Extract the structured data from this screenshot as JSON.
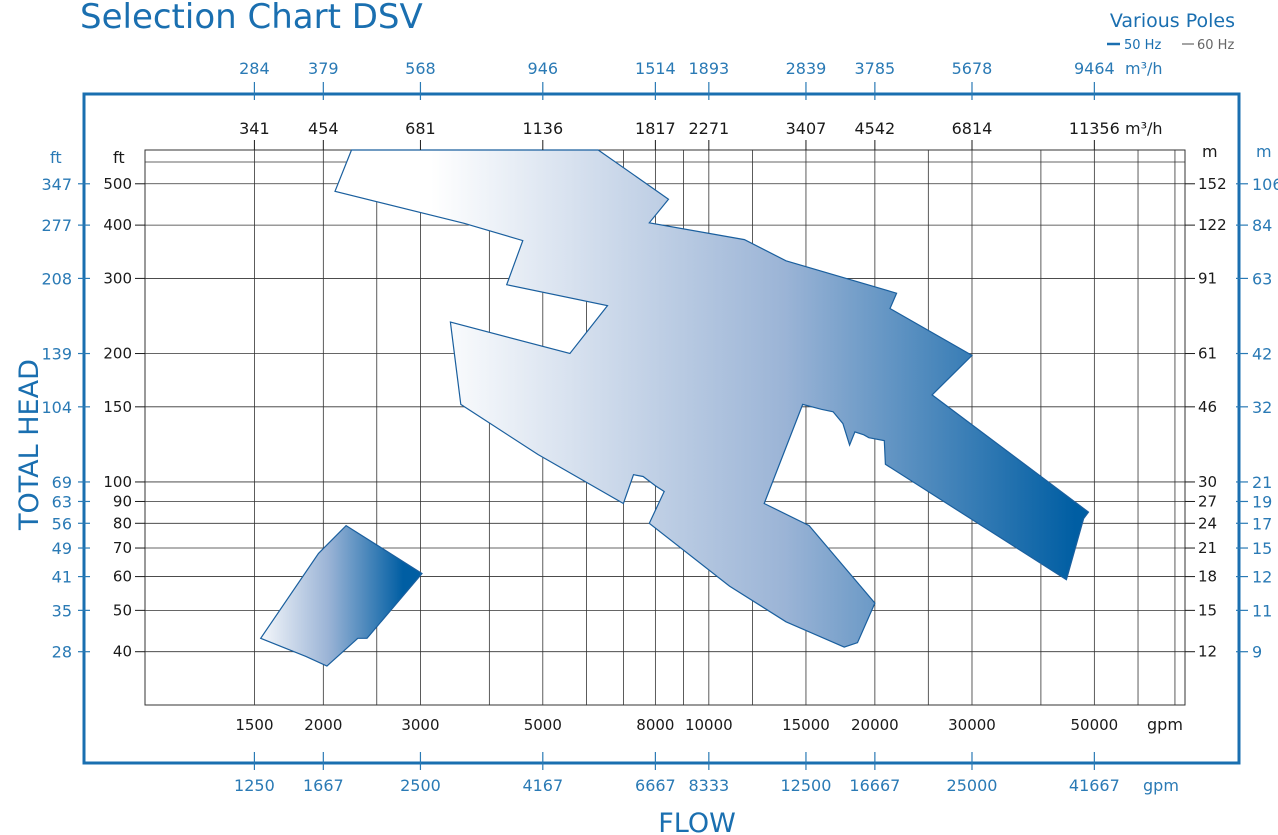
{
  "title": "Selection Chart DSV",
  "legend": {
    "title": "Various Poles",
    "items": [
      {
        "label": "50 Hz",
        "color": "#1a6fb0",
        "style": "solid-thick"
      },
      {
        "label": "60 Hz",
        "color": "#666666",
        "style": "solid-thin"
      }
    ]
  },
  "axes": {
    "y_title": "TOTAL HEAD",
    "x_title": "FLOW",
    "unit_ft": "ft",
    "unit_m": "m",
    "unit_m3h": "m³/h",
    "unit_gpm": "gpm"
  },
  "colors": {
    "accent": "#1a6fb0",
    "frame": "#1a6fb0",
    "gradient_start": "#ffffff",
    "gradient_end": "#005ea3",
    "grid": "#333333"
  },
  "chart_data": {
    "type": "area",
    "description_scale": "log-log",
    "x_scale": "log",
    "y_scale": "log",
    "grid": true,
    "legend_position": "top-right",
    "xlabel": "FLOW",
    "ylabel": "TOTAL HEAD",
    "xlim_gpm_50hz": [
      950,
      73000
    ],
    "ylim_ft_50hz": [
      30,
      600
    ],
    "axes_ticks": {
      "top_outer_m3h_60hz": [
        284,
        379,
        568,
        946,
        1514,
        1893,
        2839,
        3785,
        5678,
        9464
      ],
      "top_inner_m3h_50hz": [
        341,
        454,
        681,
        1136,
        1817,
        2271,
        3407,
        4542,
        6814,
        11356
      ],
      "bottom_inner_gpm_50hz": [
        1500,
        2000,
        3000,
        5000,
        8000,
        10000,
        15000,
        20000,
        30000,
        50000
      ],
      "bottom_outer_gpm_60hz": [
        1250,
        1667,
        2500,
        4167,
        6667,
        8333,
        12500,
        16667,
        25000,
        41667
      ],
      "left_inner_ft_50hz": [
        500,
        400,
        300,
        200,
        150,
        100,
        90,
        80,
        70,
        60,
        50,
        40
      ],
      "left_outer_ft_60hz": [
        347,
        277,
        208,
        139,
        104,
        69,
        63,
        56,
        49,
        41,
        35,
        28
      ],
      "right_inner_m_50hz": [
        152,
        122,
        91,
        61,
        46,
        30,
        27,
        24,
        21,
        18,
        15,
        12
      ],
      "right_outer_m_60hz": [
        106,
        84,
        63,
        42,
        32,
        21,
        19,
        17,
        15,
        12,
        11,
        9
      ]
    },
    "extra_vertical_gridlines_gpm": [
      2500,
      4000,
      6000,
      7000,
      9000,
      12000,
      25000,
      40000,
      60000,
      70000
    ],
    "series": [
      {
        "region": "small",
        "polygon_gpm_ft": [
          [
            1540,
            43
          ],
          [
            1960,
            68
          ],
          [
            2200,
            79
          ],
          [
            3020,
            61
          ],
          [
            2400,
            43
          ],
          [
            2310,
            43
          ],
          [
            2030,
            37
          ],
          [
            1860,
            39
          ]
        ]
      },
      {
        "region": "large",
        "polygon_gpm_ft": [
          [
            2250,
            600
          ],
          [
            6300,
            600
          ],
          [
            8450,
            460
          ],
          [
            7800,
            405
          ],
          [
            11600,
            370
          ],
          [
            13800,
            330
          ],
          [
            21900,
            277
          ],
          [
            21300,
            255
          ],
          [
            30000,
            198
          ],
          [
            25400,
            160
          ],
          [
            48800,
            85
          ],
          [
            47800,
            82
          ],
          [
            44500,
            59
          ],
          [
            20900,
            110
          ],
          [
            20800,
            125
          ],
          [
            19500,
            127
          ],
          [
            19100,
            129
          ],
          [
            18400,
            131
          ],
          [
            18000,
            122
          ],
          [
            17500,
            137
          ],
          [
            16800,
            146
          ],
          [
            16000,
            148
          ],
          [
            14800,
            152
          ],
          [
            12600,
            89
          ],
          [
            15200,
            79
          ],
          [
            20000,
            52
          ],
          [
            18600,
            42
          ],
          [
            17600,
            41
          ],
          [
            13800,
            47
          ],
          [
            10900,
            57
          ],
          [
            7800,
            80
          ],
          [
            8300,
            95
          ],
          [
            8000,
            98
          ],
          [
            7600,
            103
          ],
          [
            7300,
            104
          ],
          [
            7000,
            89
          ],
          [
            4900,
            116
          ],
          [
            3550,
            152
          ],
          [
            3400,
            237
          ],
          [
            5600,
            200
          ],
          [
            6550,
            259
          ],
          [
            4300,
            290
          ],
          [
            4600,
            368
          ],
          [
            3600,
            404
          ],
          [
            2100,
            480
          ]
        ]
      }
    ]
  }
}
